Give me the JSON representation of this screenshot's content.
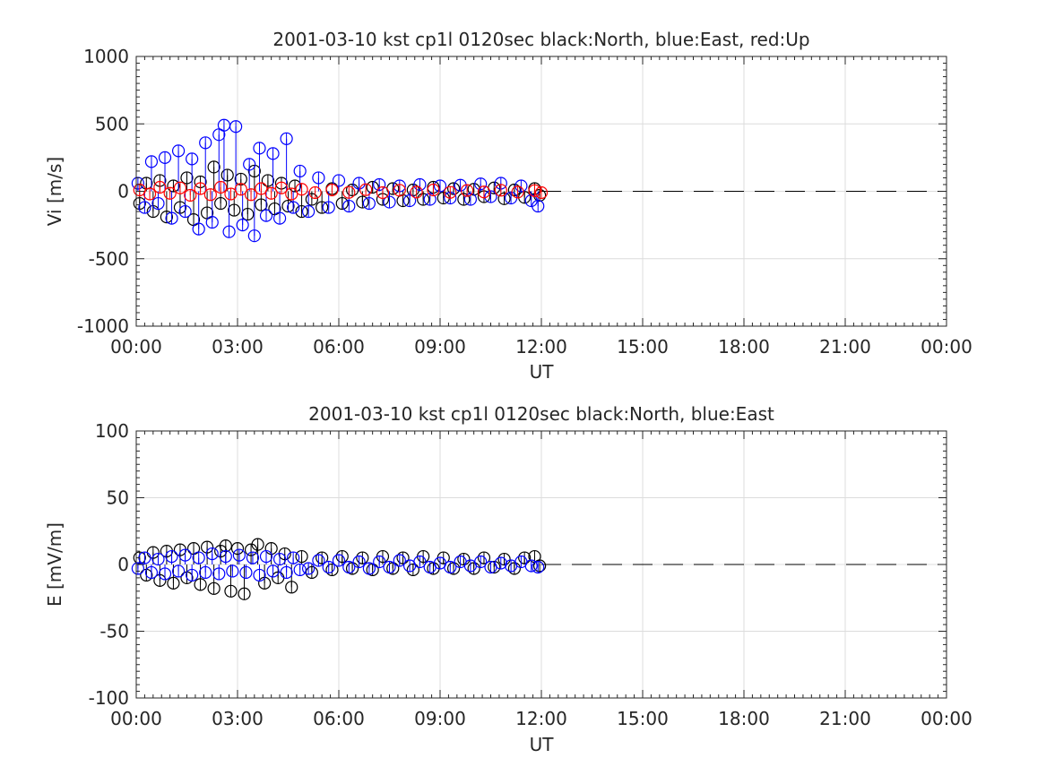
{
  "chart_data": [
    {
      "type": "scatter",
      "title": "2001-03-10 kst cp1l 0120sec black:North, blue:East, red:Up",
      "xlabel": "UT",
      "ylabel": "Vi [m/s]",
      "xlim": [
        0,
        24
      ],
      "ylim": [
        -1000,
        1000
      ],
      "xticks": [
        "00:00",
        "03:00",
        "06:00",
        "09:00",
        "12:00",
        "15:00",
        "18:00",
        "21:00",
        "00:00"
      ],
      "yticks": [
        "-1000",
        "-500",
        "0",
        "500",
        "1000"
      ],
      "grid": true,
      "marker": "circle with vertical stem",
      "reference_line": {
        "y": 0,
        "from_x": 12.0,
        "to_x": 24,
        "style": "dashed",
        "color": "#000000"
      },
      "series": [
        {
          "name": "North",
          "color": "#000000",
          "x": [
            0.1,
            0.3,
            0.5,
            0.7,
            0.9,
            1.1,
            1.3,
            1.5,
            1.7,
            1.9,
            2.1,
            2.3,
            2.5,
            2.7,
            2.9,
            3.1,
            3.3,
            3.5,
            3.7,
            3.9,
            4.1,
            4.3,
            4.5,
            4.7,
            4.9,
            5.2,
            5.5,
            5.8,
            6.1,
            6.4,
            6.7,
            7.0,
            7.3,
            7.6,
            7.9,
            8.2,
            8.5,
            8.8,
            9.1,
            9.4,
            9.7,
            10.0,
            10.3,
            10.6,
            10.9,
            11.2,
            11.5,
            11.8,
            11.95
          ],
          "y": [
            -90,
            60,
            -150,
            80,
            -190,
            40,
            -120,
            100,
            -210,
            70,
            -160,
            180,
            -90,
            120,
            -140,
            90,
            -170,
            150,
            -100,
            80,
            -130,
            60,
            -110,
            40,
            -150,
            -60,
            -120,
            20,
            -90,
            10,
            -80,
            30,
            -60,
            20,
            -70,
            10,
            -60,
            30,
            -50,
            20,
            -60,
            15,
            -40,
            25,
            -55,
            10,
            -45,
            20,
            -30
          ]
        },
        {
          "name": "East",
          "color": "#0000ff",
          "x": [
            0.05,
            0.25,
            0.45,
            0.65,
            0.85,
            1.05,
            1.25,
            1.45,
            1.65,
            1.85,
            2.05,
            2.25,
            2.45,
            2.6,
            2.75,
            2.95,
            3.15,
            3.35,
            3.5,
            3.65,
            3.85,
            4.05,
            4.25,
            4.45,
            4.65,
            4.85,
            5.1,
            5.4,
            5.7,
            6.0,
            6.3,
            6.6,
            6.9,
            7.2,
            7.5,
            7.8,
            8.1,
            8.4,
            8.7,
            9.0,
            9.3,
            9.6,
            9.9,
            10.2,
            10.5,
            10.8,
            11.1,
            11.4,
            11.7,
            11.9
          ],
          "y": [
            60,
            -120,
            220,
            -90,
            250,
            -200,
            300,
            -150,
            240,
            -280,
            360,
            -230,
            420,
            490,
            -300,
            480,
            -250,
            200,
            -330,
            320,
            -180,
            280,
            -200,
            390,
            -120,
            150,
            -150,
            100,
            -120,
            80,
            -110,
            60,
            -90,
            50,
            -80,
            40,
            -70,
            50,
            -60,
            40,
            -50,
            45,
            -60,
            55,
            -40,
            60,
            -50,
            40,
            -70,
            -110
          ]
        },
        {
          "name": "Up",
          "color": "#ff0000",
          "x": [
            0.1,
            0.4,
            0.7,
            1.0,
            1.3,
            1.6,
            1.9,
            2.2,
            2.5,
            2.8,
            3.1,
            3.4,
            3.7,
            4.0,
            4.3,
            4.6,
            4.9,
            5.3,
            5.8,
            6.3,
            6.8,
            7.3,
            7.8,
            8.3,
            8.8,
            9.3,
            9.8,
            10.3,
            10.8,
            11.3,
            11.8,
            12.0
          ],
          "y": [
            10,
            -20,
            30,
            -15,
            25,
            -30,
            20,
            -25,
            30,
            -20,
            15,
            -25,
            20,
            -15,
            25,
            -20,
            15,
            -10,
            10,
            -8,
            12,
            -10,
            8,
            -6,
            10,
            -8,
            6,
            -5,
            8,
            -6,
            5,
            -10
          ]
        }
      ]
    },
    {
      "type": "scatter",
      "title": "2001-03-10 kst cp1l 0120sec black:North, blue:East",
      "xlabel": "UT",
      "ylabel": "E [mV/m]",
      "xlim": [
        0,
        24
      ],
      "ylim": [
        -100,
        100
      ],
      "xticks": [
        "00:00",
        "03:00",
        "06:00",
        "09:00",
        "12:00",
        "15:00",
        "18:00",
        "21:00",
        "00:00"
      ],
      "yticks": [
        "-100",
        "-50",
        "0",
        "50",
        "100"
      ],
      "grid": true,
      "marker": "circle with vertical stem",
      "reference_line": {
        "y": 0,
        "from_x": 12.0,
        "to_x": 24,
        "style": "dashed",
        "color": "#000000"
      },
      "series": [
        {
          "name": "North",
          "color": "#000000",
          "x": [
            0.1,
            0.3,
            0.5,
            0.7,
            0.9,
            1.1,
            1.3,
            1.5,
            1.7,
            1.9,
            2.1,
            2.3,
            2.5,
            2.65,
            2.8,
            3.0,
            3.2,
            3.4,
            3.6,
            3.8,
            4.0,
            4.2,
            4.4,
            4.6,
            4.9,
            5.2,
            5.5,
            5.8,
            6.1,
            6.4,
            6.7,
            7.0,
            7.3,
            7.6,
            7.9,
            8.2,
            8.5,
            8.8,
            9.1,
            9.4,
            9.7,
            10.0,
            10.3,
            10.6,
            10.9,
            11.2,
            11.5,
            11.8,
            11.95
          ],
          "y": [
            5,
            -8,
            9,
            -12,
            10,
            -14,
            11,
            -10,
            12,
            -15,
            13,
            -18,
            10,
            14,
            -20,
            12,
            -22,
            11,
            15,
            -14,
            12,
            -10,
            8,
            -17,
            6,
            -6,
            5,
            -4,
            6,
            -3,
            5,
            -4,
            6,
            -3,
            5,
            -4,
            6,
            -3,
            5,
            -3,
            4,
            -3,
            5,
            -2,
            4,
            -3,
            5,
            6,
            -1
          ]
        },
        {
          "name": "East",
          "color": "#0000ff",
          "x": [
            0.05,
            0.25,
            0.45,
            0.65,
            0.85,
            1.05,
            1.25,
            1.45,
            1.65,
            1.85,
            2.05,
            2.25,
            2.45,
            2.65,
            2.85,
            3.05,
            3.25,
            3.45,
            3.65,
            3.85,
            4.05,
            4.25,
            4.45,
            4.65,
            4.85,
            5.1,
            5.4,
            5.7,
            6.0,
            6.3,
            6.6,
            6.9,
            7.2,
            7.5,
            7.8,
            8.1,
            8.4,
            8.7,
            9.0,
            9.3,
            9.6,
            9.9,
            10.2,
            10.5,
            10.8,
            11.1,
            11.4,
            11.7,
            11.9
          ],
          "y": [
            -3,
            5,
            -6,
            4,
            -7,
            6,
            -5,
            7,
            -8,
            5,
            -6,
            8,
            -7,
            6,
            -5,
            7,
            -6,
            5,
            -8,
            6,
            -5,
            4,
            -6,
            5,
            -4,
            -3,
            3,
            -2,
            3,
            -2,
            2,
            -3,
            2,
            -2,
            3,
            -1,
            2,
            -2,
            1,
            -2,
            2,
            -1,
            2,
            -2,
            1,
            -1,
            2,
            -1,
            -2
          ]
        }
      ]
    }
  ]
}
